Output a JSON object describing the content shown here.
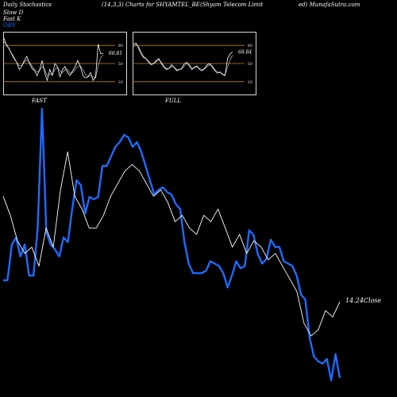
{
  "header": {
    "left": "Daily Stochastics",
    "params": "(14,3,3) Charts for SHYAMTEL_BE",
    "company": "(Shyam Telecom Limit",
    "site": "ed) MunafaSutra.com"
  },
  "legend": {
    "slow_d": "Slow  D",
    "fast_k": "Fast K",
    "obv": "OBV"
  },
  "colors": {
    "obv": "#1e6bff",
    "price": "#ffffff",
    "band": "#c8821e"
  },
  "chart_data": [
    {
      "type": "line",
      "panel": "FAST",
      "ylim": [
        0,
        100
      ],
      "band_levels": [
        80,
        50,
        20
      ],
      "y_ticks": [
        "80",
        "50",
        "20"
      ],
      "last_value_label": "66.81",
      "k": [
        92,
        80,
        75,
        66,
        58,
        52,
        40,
        45,
        55,
        62,
        50,
        42,
        38,
        30,
        40,
        55,
        35,
        22,
        40,
        30,
        50,
        45,
        28,
        40,
        45,
        35,
        30,
        38,
        45,
        55,
        45,
        30,
        26,
        28,
        35,
        22,
        28,
        82,
        66,
        67
      ],
      "d": [
        86,
        82,
        74,
        67,
        60,
        52,
        46,
        47,
        52,
        56,
        52,
        46,
        40,
        36,
        38,
        45,
        40,
        30,
        32,
        33,
        40,
        44,
        38,
        35,
        40,
        40,
        34,
        35,
        40,
        45,
        46,
        40,
        32,
        28,
        30,
        28,
        26,
        46,
        60,
        64
      ]
    },
    {
      "type": "line",
      "panel": "FULL",
      "ylim": [
        0,
        100
      ],
      "band_levels": [
        80,
        50,
        20
      ],
      "y_ticks": [
        "80",
        "50",
        "20"
      ],
      "last_value_label": "68.84",
      "k": [
        82,
        84,
        76,
        66,
        60,
        58,
        52,
        48,
        50,
        55,
        58,
        50,
        44,
        40,
        42,
        48,
        44,
        38,
        40,
        42,
        50,
        52,
        46,
        40,
        44,
        46,
        40,
        38,
        42,
        48,
        50,
        44,
        38,
        34,
        36,
        32,
        30,
        58,
        66,
        69
      ],
      "d": [
        78,
        82,
        78,
        70,
        62,
        58,
        54,
        50,
        50,
        53,
        56,
        52,
        46,
        42,
        42,
        45,
        44,
        40,
        40,
        41,
        46,
        50,
        48,
        43,
        43,
        45,
        42,
        40,
        41,
        45,
        48,
        46,
        40,
        36,
        35,
        33,
        31,
        44,
        56,
        64
      ]
    },
    {
      "type": "line",
      "panel": "main",
      "series_obv": [
        10,
        10,
        25,
        28,
        20,
        25,
        12,
        12,
        32,
        82,
        30,
        25,
        23,
        20,
        28,
        26,
        40,
        52,
        50,
        38,
        45,
        44,
        45,
        58,
        58,
        62,
        66,
        68,
        71,
        70,
        66,
        68,
        64,
        58,
        52,
        46,
        48,
        49,
        47,
        46,
        42,
        40,
        26,
        17,
        13,
        13,
        13,
        14,
        18,
        17,
        16,
        13,
        7,
        12,
        18,
        15,
        16,
        31,
        29,
        21,
        17,
        19,
        27,
        24,
        24,
        18,
        17,
        16,
        12,
        4,
        2,
        -14,
        -22,
        -24,
        -25,
        -23,
        -32,
        -21,
        -31
      ],
      "series_close": [
        15.9,
        15.6,
        15.2,
        15.0,
        15.1,
        14.8,
        15.4,
        15.1,
        16.0,
        16.6,
        15.9,
        15.7,
        15.4,
        15.4,
        15.6,
        15.9,
        16.1,
        16.3,
        16.4,
        16.3,
        16.1,
        15.9,
        16.0,
        15.8,
        15.5,
        15.6,
        15.4,
        15.3,
        15.6,
        15.5,
        15.7,
        15.4,
        15.1,
        15.3,
        15.0,
        15.2,
        15.1,
        14.9,
        15.0,
        14.8,
        14.6,
        14.4,
        13.9,
        13.7,
        13.8,
        14.1,
        14.0,
        14.24
      ],
      "close_label": "14.24Close"
    }
  ],
  "panels": {
    "fast_label": "FAST",
    "full_label": "FULL"
  }
}
